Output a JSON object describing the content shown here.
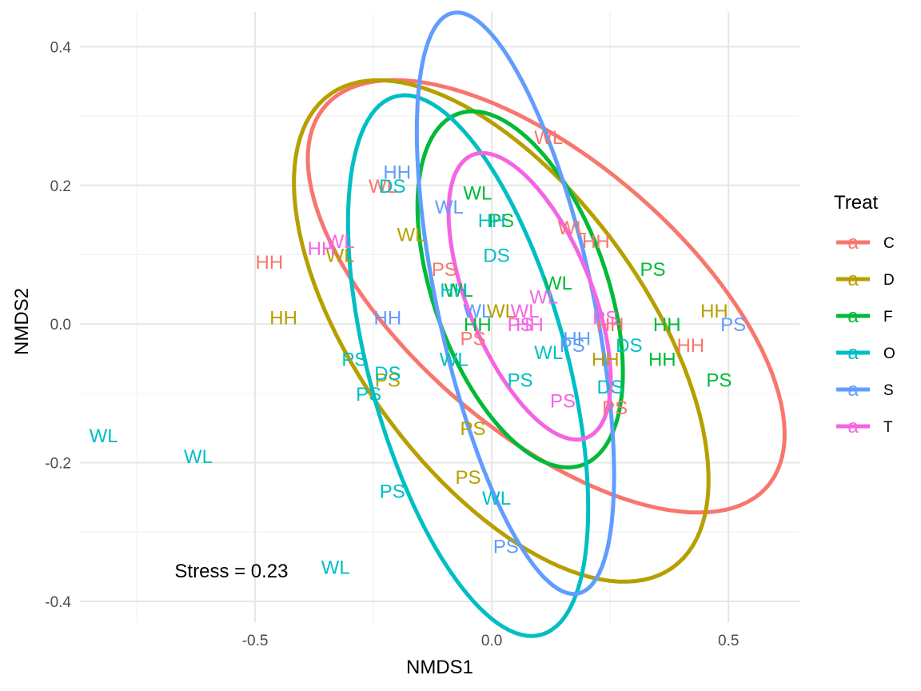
{
  "chart_data": {
    "type": "scatter",
    "title": "",
    "xlabel": "NMDS1",
    "ylabel": "NMDS2",
    "xlim": [
      -0.87,
      0.65
    ],
    "ylim": [
      -0.43,
      0.45
    ],
    "x_ticks": [
      -0.5,
      0.0,
      0.5
    ],
    "x_tick_labels": [
      "-0.5",
      "0.0",
      "0.5"
    ],
    "y_ticks": [
      -0.4,
      -0.2,
      0.0,
      0.2,
      0.4
    ],
    "y_tick_labels": [
      "-0.4",
      "-0.2",
      "0.0",
      "0.2",
      "0.4"
    ],
    "grid": true,
    "legend": {
      "title": "Treat",
      "position": "right",
      "key_glyph": "a",
      "entries": [
        {
          "name": "C",
          "color": "#F8766D"
        },
        {
          "name": "D",
          "color": "#B79F00"
        },
        {
          "name": "F",
          "color": "#00BA38"
        },
        {
          "name": "O",
          "color": "#00BFC4"
        },
        {
          "name": "S",
          "color": "#619CFF"
        },
        {
          "name": "T",
          "color": "#F564E3"
        }
      ]
    },
    "annotation": "Stress = 0.23",
    "annotation_pos": [
      -0.55,
      -0.355
    ],
    "ellipses": [
      {
        "group": "C",
        "color": "#F8766D",
        "cx": 0.115,
        "cy": 0.04,
        "a": 0.55,
        "b": 0.22,
        "angle_deg": -26
      },
      {
        "group": "D",
        "color": "#B79F00",
        "cx": 0.02,
        "cy": -0.01,
        "a": 0.51,
        "b": 0.25,
        "angle_deg": -36
      },
      {
        "group": "F",
        "color": "#00BA38",
        "cx": 0.06,
        "cy": 0.05,
        "a": 0.29,
        "b": 0.17,
        "angle_deg": -55
      },
      {
        "group": "O",
        "color": "#00BFC4",
        "cx": -0.05,
        "cy": -0.06,
        "a": 0.42,
        "b": 0.2,
        "angle_deg": -65
      },
      {
        "group": "S",
        "color": "#619CFF",
        "cx": 0.05,
        "cy": 0.03,
        "a": 0.44,
        "b": 0.16,
        "angle_deg": -71
      },
      {
        "group": "T",
        "color": "#F564E3",
        "cx": 0.08,
        "cy": 0.04,
        "a": 0.24,
        "b": 0.12,
        "angle_deg": -54
      }
    ],
    "series": [
      {
        "group": "C",
        "color": "#F8766D",
        "points": [
          {
            "x": 0.12,
            "y": 0.27,
            "label": "WL"
          },
          {
            "x": -0.23,
            "y": 0.2,
            "label": "WL"
          },
          {
            "x": 0.17,
            "y": 0.14,
            "label": "WL"
          },
          {
            "x": -0.47,
            "y": 0.09,
            "label": "HH"
          },
          {
            "x": -0.1,
            "y": 0.08,
            "label": "PS"
          },
          {
            "x": 0.22,
            "y": 0.12,
            "label": "HH"
          },
          {
            "x": 0.42,
            "y": -0.03,
            "label": "HH"
          },
          {
            "x": 0.25,
            "y": 0.0,
            "label": "HH"
          },
          {
            "x": -0.04,
            "y": -0.02,
            "label": "PS"
          },
          {
            "x": 0.26,
            "y": -0.12,
            "label": "PS"
          }
        ]
      },
      {
        "group": "D",
        "color": "#B79F00",
        "points": [
          {
            "x": -0.44,
            "y": 0.01,
            "label": "HH"
          },
          {
            "x": -0.32,
            "y": 0.1,
            "label": "WL"
          },
          {
            "x": -0.17,
            "y": 0.13,
            "label": "WL"
          },
          {
            "x": 0.02,
            "y": 0.02,
            "label": "WL"
          },
          {
            "x": 0.47,
            "y": 0.02,
            "label": "HH"
          },
          {
            "x": 0.24,
            "y": -0.05,
            "label": "HH"
          },
          {
            "x": -0.22,
            "y": -0.08,
            "label": "PS"
          },
          {
            "x": -0.04,
            "y": -0.15,
            "label": "PS"
          },
          {
            "x": -0.05,
            "y": -0.22,
            "label": "PS"
          }
        ]
      },
      {
        "group": "F",
        "color": "#00BA38",
        "points": [
          {
            "x": -0.03,
            "y": 0.19,
            "label": "WL"
          },
          {
            "x": 0.02,
            "y": 0.15,
            "label": "PS"
          },
          {
            "x": 0.34,
            "y": 0.08,
            "label": "PS"
          },
          {
            "x": -0.07,
            "y": 0.05,
            "label": "WL"
          },
          {
            "x": 0.14,
            "y": 0.06,
            "label": "WL"
          },
          {
            "x": -0.03,
            "y": 0.0,
            "label": "HH"
          },
          {
            "x": 0.37,
            "y": 0.0,
            "label": "HH"
          },
          {
            "x": 0.36,
            "y": -0.05,
            "label": "HH"
          },
          {
            "x": 0.48,
            "y": -0.08,
            "label": "PS"
          }
        ]
      },
      {
        "group": "O",
        "color": "#00BFC4",
        "points": [
          {
            "x": -0.21,
            "y": 0.2,
            "label": "DS"
          },
          {
            "x": 0.0,
            "y": 0.15,
            "label": "HH"
          },
          {
            "x": 0.01,
            "y": 0.1,
            "label": "DS"
          },
          {
            "x": -0.08,
            "y": 0.05,
            "label": "HH"
          },
          {
            "x": 0.12,
            "y": -0.04,
            "label": "WL"
          },
          {
            "x": 0.29,
            "y": -0.03,
            "label": "DS"
          },
          {
            "x": -0.29,
            "y": -0.05,
            "label": "PS"
          },
          {
            "x": -0.22,
            "y": -0.07,
            "label": "DS"
          },
          {
            "x": -0.26,
            "y": -0.1,
            "label": "PS"
          },
          {
            "x": 0.06,
            "y": -0.08,
            "label": "PS"
          },
          {
            "x": -0.08,
            "y": -0.05,
            "label": "WL"
          },
          {
            "x": 0.25,
            "y": -0.09,
            "label": "DS"
          },
          {
            "x": -0.82,
            "y": -0.16,
            "label": "WL"
          },
          {
            "x": -0.62,
            "y": -0.19,
            "label": "WL"
          },
          {
            "x": -0.21,
            "y": -0.24,
            "label": "PS"
          },
          {
            "x": 0.01,
            "y": -0.25,
            "label": "WL"
          },
          {
            "x": -0.33,
            "y": -0.35,
            "label": "WL"
          }
        ]
      },
      {
        "group": "S",
        "color": "#619CFF",
        "points": [
          {
            "x": -0.2,
            "y": 0.22,
            "label": "HH"
          },
          {
            "x": -0.09,
            "y": 0.17,
            "label": "WL"
          },
          {
            "x": -0.22,
            "y": 0.01,
            "label": "HH"
          },
          {
            "x": -0.03,
            "y": 0.02,
            "label": "WL"
          },
          {
            "x": 0.18,
            "y": -0.02,
            "label": "HH"
          },
          {
            "x": 0.17,
            "y": -0.03,
            "label": "PS"
          },
          {
            "x": 0.51,
            "y": 0.0,
            "label": "PS"
          },
          {
            "x": 0.03,
            "y": -0.32,
            "label": "PS"
          }
        ]
      },
      {
        "group": "T",
        "color": "#F564E3",
        "points": [
          {
            "x": -0.32,
            "y": 0.12,
            "label": "WL"
          },
          {
            "x": -0.36,
            "y": 0.11,
            "label": "HH"
          },
          {
            "x": 0.11,
            "y": 0.04,
            "label": "WL"
          },
          {
            "x": 0.07,
            "y": 0.02,
            "label": "WL"
          },
          {
            "x": 0.08,
            "y": 0.0,
            "label": "HH"
          },
          {
            "x": 0.06,
            "y": 0.0,
            "label": "PS"
          },
          {
            "x": 0.24,
            "y": 0.01,
            "label": "PS"
          },
          {
            "x": 0.15,
            "y": -0.11,
            "label": "PS"
          }
        ]
      }
    ]
  }
}
